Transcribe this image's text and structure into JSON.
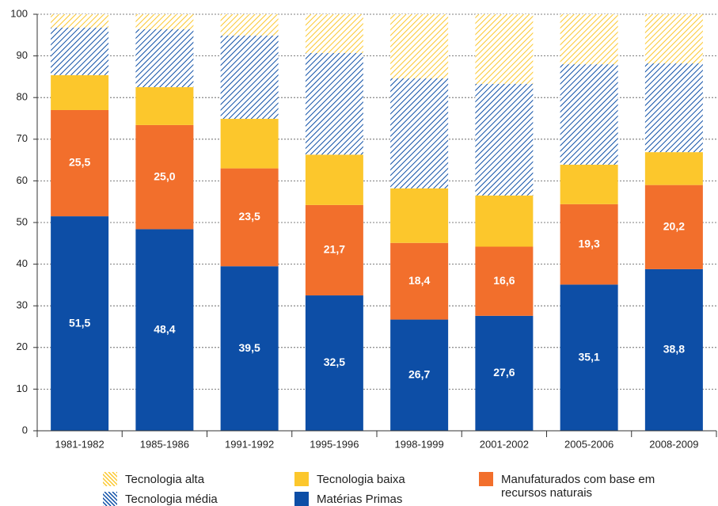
{
  "chart_data": {
    "type": "stacked_bar",
    "categories": [
      "1981-1982",
      "1985-1986",
      "1991-1992",
      "1995-1996",
      "1998-1999",
      "2001-2002",
      "2005-2006",
      "2008-2009"
    ],
    "series": [
      {
        "name": "Matérias Primas",
        "color": "#0d4ea6",
        "values": [
          51.5,
          48.4,
          39.5,
          32.5,
          26.7,
          27.6,
          35.1,
          38.8
        ],
        "value_labels": [
          "51,5",
          "48,4",
          "39,5",
          "32,5",
          "26,7",
          "27,6",
          "35,1",
          "38,8"
        ]
      },
      {
        "name": "Manufaturados com base em recursos naturais",
        "color": "#f26f2c",
        "values": [
          25.5,
          25.0,
          23.5,
          21.7,
          18.4,
          16.6,
          19.3,
          20.2
        ],
        "value_labels": [
          "25,5",
          "25,0",
          "23,5",
          "21,7",
          "18,4",
          "16,6",
          "19,3",
          "20,2"
        ]
      },
      {
        "name": "Tecnologia baixa",
        "color": "#fcc72c",
        "values": [
          8.4,
          9.1,
          11.9,
          12.1,
          13.1,
          12.3,
          9.5,
          7.9
        ]
      },
      {
        "name": "Tecnologia média",
        "color": "#0d4ea6",
        "hatch": true,
        "values": [
          11.4,
          13.9,
          20.0,
          24.4,
          26.4,
          26.8,
          24.1,
          21.3
        ]
      },
      {
        "name": "Tecnologia alta",
        "color": "#fcc72c",
        "hatch": true,
        "values": [
          3.2,
          3.6,
          5.1,
          9.3,
          15.4,
          16.7,
          12.0,
          11.8
        ]
      }
    ],
    "ylim": [
      0,
      100
    ],
    "yticks": [
      0,
      10,
      20,
      30,
      40,
      50,
      60,
      70,
      80,
      90,
      100
    ],
    "grid": true
  }
}
